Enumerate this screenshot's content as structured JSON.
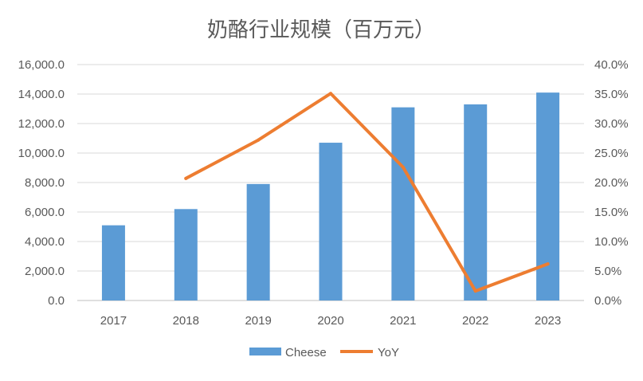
{
  "chart_data": {
    "type": "bar",
    "title": "奶酪行业规模（百万元）",
    "categories": [
      "2017",
      "2018",
      "2019",
      "2020",
      "2021",
      "2022",
      "2023"
    ],
    "series": [
      {
        "name": "Cheese",
        "type": "bar",
        "axis": "left",
        "color": "#5B9BD5",
        "values": [
          5100,
          6200,
          7900,
          10700,
          13100,
          13300,
          14100
        ]
      },
      {
        "name": "YoY",
        "type": "line",
        "axis": "right",
        "color": "#ED7D31",
        "values": [
          null,
          0.207,
          0.272,
          0.351,
          0.226,
          0.016,
          0.062
        ]
      }
    ],
    "y_left": {
      "min": 0,
      "max": 16000,
      "step": 2000,
      "ticks": [
        "0.0",
        "2,000.0",
        "4,000.0",
        "6,000.0",
        "8,000.0",
        "10,000.0",
        "12,000.0",
        "14,000.0",
        "16,000.0"
      ]
    },
    "y_right": {
      "min": 0,
      "max": 0.4,
      "step": 0.05,
      "ticks": [
        "0.0%",
        "5.0%",
        "10.0%",
        "15.0%",
        "20.0%",
        "25.0%",
        "30.0%",
        "35.0%",
        "40.0%"
      ]
    },
    "grid": true,
    "legend_position": "bottom",
    "legend": [
      {
        "label": "Cheese",
        "color": "#5B9BD5",
        "kind": "bar"
      },
      {
        "label": "YoY",
        "color": "#ED7D31",
        "kind": "line"
      }
    ]
  }
}
